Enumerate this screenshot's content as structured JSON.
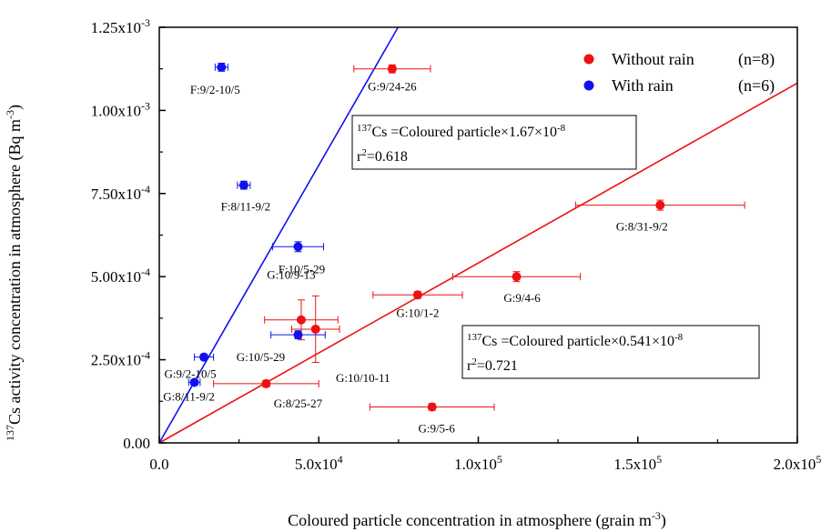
{
  "chart_data": {
    "type": "scatter",
    "xlabel_main": "Coloured particle concentration in atmosphere (grain m",
    "xlabel_sup": "-3",
    "xlabel_end": ")",
    "ylabel_sup": "137",
    "ylabel_main": "Cs activity concentration in atmosphere (Bq m",
    "ylabel_sup2": "-3",
    "ylabel_end": ")",
    "xlim": [
      0,
      200000
    ],
    "ylim": [
      0,
      0.00125
    ],
    "x_ticks": [
      {
        "value": 0,
        "label": "0.0"
      },
      {
        "value": 50000,
        "label": "5.0x10",
        "exp": "4"
      },
      {
        "value": 100000,
        "label": "1.0x10",
        "exp": "5"
      },
      {
        "value": 150000,
        "label": "1.5x10",
        "exp": "5"
      },
      {
        "value": 200000,
        "label": "2.0x10",
        "exp": "5"
      }
    ],
    "y_ticks": [
      {
        "value": 0,
        "label": "0.00"
      },
      {
        "value": 0.00025,
        "label": "2.50x10",
        "exp": "-4"
      },
      {
        "value": 0.0005,
        "label": "5.00x10",
        "exp": "-4"
      },
      {
        "value": 0.00075,
        "label": "7.50x10",
        "exp": "-4"
      },
      {
        "value": 0.001,
        "label": "1.00x10",
        "exp": "-3"
      },
      {
        "value": 0.00125,
        "label": "1.25x10",
        "exp": "-3"
      }
    ],
    "legend_position": "top-right",
    "series": [
      {
        "name": "Without rain (n=8)",
        "legend_name": "Without rain",
        "legend_n": "(n=8)",
        "color": "#ee1111",
        "points": [
          {
            "label": "G:9/24-26",
            "x": 73000,
            "y": 0.001125,
            "xerr": 12000,
            "yerr": 1.2e-05
          },
          {
            "label": "G:8/31-9/2",
            "x": 157000,
            "y": 0.000715,
            "xerr": 26500,
            "yerr": 1.5e-05
          },
          {
            "label": "G:9/4-6",
            "x": 112000,
            "y": 0.0005,
            "xerr": 20000,
            "yerr": 1.5e-05
          },
          {
            "label": "G:10/1-2",
            "x": 81000,
            "y": 0.000445,
            "xerr": 14000,
            "yerr": 1e-05
          },
          {
            "label": "G:10/9-13",
            "x": 44500,
            "y": 0.00037,
            "xerr": 11500,
            "yerr": 6e-05
          },
          {
            "label": "G:10/10-11",
            "x": 49000,
            "y": 0.000342,
            "xerr": 7500,
            "yerr": 0.0001
          },
          {
            "label": "G:8/25-27",
            "x": 33500,
            "y": 0.000178,
            "xerr": 16500,
            "yerr": 1e-05
          },
          {
            "label": "G:9/5-6",
            "x": 85500,
            "y": 0.000108,
            "xerr": 19500,
            "yerr": 1e-05
          }
        ],
        "fit_slope": 5.41e-09,
        "fit_eq": "Cs =Coloured particle×0.541×10",
        "fit_eq_sup": "137",
        "fit_eq_exp": "-8",
        "r2_label": "r",
        "r2_sup": "2",
        "r2_value": "=0.721"
      },
      {
        "name": "With rain (n=6)",
        "legend_name": "With rain",
        "legend_n": "(n=6)",
        "color": "#1111ee",
        "points": [
          {
            "label": "F:9/2-10/5",
            "x": 19500,
            "y": 0.00113,
            "xerr": 2000,
            "yerr": 1.2e-05
          },
          {
            "label": "F:8/11-9/2",
            "x": 26500,
            "y": 0.000775,
            "xerr": 2000,
            "yerr": 1.2e-05
          },
          {
            "label": "F:10/5-29",
            "x": 43500,
            "y": 0.00059,
            "xerr": 8000,
            "yerr": 1.5e-05
          },
          {
            "label": "G:10/5-29",
            "x": 43500,
            "y": 0.000325,
            "xerr": 8500,
            "yerr": 1.2e-05
          },
          {
            "label": "G:9/2-10/5",
            "x": 14000,
            "y": 0.000258,
            "xerr": 3000,
            "yerr": 8e-06
          },
          {
            "label": "G:8/11-9/2",
            "x": 11000,
            "y": 0.000182,
            "xerr": 1800,
            "yerr": 8e-06
          }
        ],
        "fit_slope": 1.67e-08,
        "fit_eq": "Cs =Coloured particle×1.67×10",
        "fit_eq_sup": "137",
        "fit_eq_exp": "-8",
        "r2_label": "r",
        "r2_sup": "2",
        "r2_value": "=0.618"
      }
    ]
  }
}
